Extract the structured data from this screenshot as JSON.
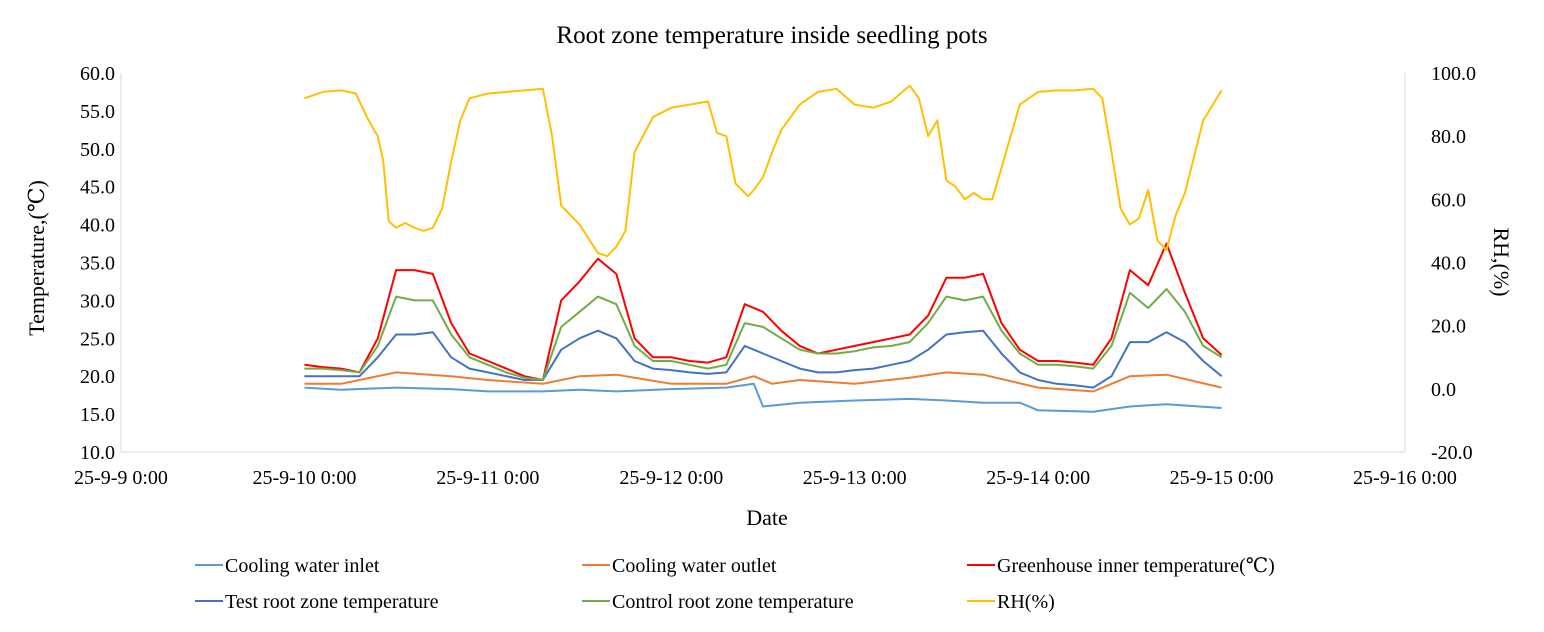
{
  "chart_data": {
    "type": "line",
    "title": "Root zone temperature inside seedling pots",
    "xlabel": "Date",
    "ylabel": "Temperature,(℃)",
    "y2label": "RH,(%)",
    "xlim": [
      0,
      7
    ],
    "ylim": [
      10,
      60
    ],
    "y2lim": [
      -20,
      100
    ],
    "x_tick_labels": [
      "25-9-9 0:00",
      "25-9-10 0:00",
      "25-9-11 0:00",
      "25-9-12 0:00",
      "25-9-13 0:00",
      "25-9-14 0:00",
      "25-9-15 0:00",
      "25-9-16 0:00"
    ],
    "y_tick_labels": [
      "10.0",
      "15.0",
      "20.0",
      "25.0",
      "30.0",
      "35.0",
      "40.0",
      "45.0",
      "50.0",
      "55.0",
      "60.0"
    ],
    "y2_tick_labels": [
      "-20.0",
      "0.0",
      "20.0",
      "40.0",
      "60.0",
      "80.0",
      "100.0"
    ],
    "grid": false,
    "legend_position": "bottom",
    "series": [
      {
        "name": "Cooling water inlet",
        "color": "#5b9bd5",
        "axis": "left",
        "x": [
          1.0,
          1.2,
          1.5,
          1.8,
          2.0,
          2.3,
          2.5,
          2.7,
          3.0,
          3.3,
          3.45,
          3.5,
          3.7,
          4.0,
          4.3,
          4.5,
          4.7,
          4.9,
          5.0,
          5.3,
          5.5,
          5.7,
          6.0
        ],
        "y": [
          18.5,
          18.2,
          18.5,
          18.3,
          18.0,
          18.0,
          18.2,
          18.0,
          18.3,
          18.5,
          19.0,
          16.0,
          16.5,
          16.8,
          17.0,
          16.8,
          16.5,
          16.5,
          15.5,
          15.3,
          16.0,
          16.3,
          15.8
        ]
      },
      {
        "name": "Cooling water outlet",
        "color": "#ed7d31",
        "axis": "left",
        "x": [
          1.0,
          1.2,
          1.5,
          1.8,
          2.0,
          2.3,
          2.5,
          2.7,
          3.0,
          3.3,
          3.45,
          3.55,
          3.7,
          4.0,
          4.3,
          4.5,
          4.7,
          5.0,
          5.3,
          5.5,
          5.7,
          6.0
        ],
        "y": [
          19.0,
          19.0,
          20.5,
          20.0,
          19.5,
          19.0,
          20.0,
          20.2,
          19.0,
          19.0,
          20.0,
          19.0,
          19.5,
          19.0,
          19.8,
          20.5,
          20.2,
          18.5,
          18.0,
          20.0,
          20.2,
          18.5
        ]
      },
      {
        "name": "Greenhouse inner temperature(℃)",
        "color": "#ff0000",
        "axis": "left",
        "x": [
          1.0,
          1.1,
          1.2,
          1.3,
          1.4,
          1.5,
          1.6,
          1.7,
          1.8,
          1.9,
          2.0,
          2.1,
          2.2,
          2.3,
          2.4,
          2.5,
          2.6,
          2.7,
          2.8,
          2.9,
          3.0,
          3.1,
          3.2,
          3.3,
          3.4,
          3.5,
          3.6,
          3.7,
          3.8,
          3.9,
          4.0,
          4.1,
          4.2,
          4.3,
          4.4,
          4.5,
          4.6,
          4.7,
          4.8,
          4.9,
          5.0,
          5.1,
          5.2,
          5.3,
          5.4,
          5.5,
          5.6,
          5.7,
          5.8,
          5.9,
          6.0
        ],
        "y": [
          21.5,
          21.2,
          21.0,
          20.5,
          25.0,
          34.0,
          34.0,
          33.5,
          27.0,
          23.0,
          22.0,
          21.0,
          20.0,
          19.5,
          30.0,
          32.5,
          35.5,
          33.5,
          25.0,
          22.5,
          22.5,
          22.0,
          21.8,
          22.5,
          29.5,
          28.5,
          26.0,
          24.0,
          23.0,
          23.5,
          24.0,
          24.5,
          25.0,
          25.5,
          28.0,
          33.0,
          33.0,
          33.5,
          27.0,
          23.5,
          22.0,
          22.0,
          21.8,
          21.5,
          25.0,
          34.0,
          32.0,
          37.5,
          31.0,
          25.0,
          22.8
        ]
      },
      {
        "name": "Test root zone temperature",
        "color": "#4472c4",
        "axis": "left",
        "x": [
          1.0,
          1.1,
          1.2,
          1.3,
          1.4,
          1.5,
          1.6,
          1.7,
          1.8,
          1.9,
          2.0,
          2.1,
          2.2,
          2.3,
          2.4,
          2.5,
          2.6,
          2.7,
          2.8,
          2.9,
          3.0,
          3.1,
          3.2,
          3.3,
          3.4,
          3.5,
          3.6,
          3.7,
          3.8,
          3.9,
          4.0,
          4.1,
          4.2,
          4.3,
          4.4,
          4.5,
          4.6,
          4.7,
          4.8,
          4.9,
          5.0,
          5.1,
          5.2,
          5.3,
          5.4,
          5.5,
          5.6,
          5.7,
          5.8,
          5.9,
          6.0
        ],
        "y": [
          20.0,
          20.0,
          20.0,
          20.0,
          22.5,
          25.5,
          25.5,
          25.8,
          22.5,
          21.0,
          20.5,
          20.0,
          19.5,
          19.5,
          23.5,
          25.0,
          26.0,
          25.0,
          22.0,
          21.0,
          20.8,
          20.5,
          20.3,
          20.5,
          24.0,
          23.0,
          22.0,
          21.0,
          20.5,
          20.5,
          20.8,
          21.0,
          21.5,
          22.0,
          23.5,
          25.5,
          25.8,
          26.0,
          23.0,
          20.5,
          19.5,
          19.0,
          18.8,
          18.5,
          20.0,
          24.5,
          24.5,
          25.8,
          24.5,
          22.0,
          20.0
        ]
      },
      {
        "name": "Control root zone temperature",
        "color": "#70ad47",
        "axis": "left",
        "x": [
          1.0,
          1.1,
          1.2,
          1.3,
          1.4,
          1.5,
          1.6,
          1.7,
          1.8,
          1.9,
          2.0,
          2.1,
          2.2,
          2.3,
          2.4,
          2.5,
          2.6,
          2.7,
          2.8,
          2.9,
          3.0,
          3.1,
          3.2,
          3.3,
          3.4,
          3.5,
          3.6,
          3.7,
          3.8,
          3.9,
          4.0,
          4.1,
          4.2,
          4.3,
          4.4,
          4.5,
          4.6,
          4.7,
          4.8,
          4.9,
          5.0,
          5.1,
          5.2,
          5.3,
          5.4,
          5.5,
          5.6,
          5.7,
          5.8,
          5.9,
          6.0
        ],
        "y": [
          21.0,
          21.0,
          20.8,
          20.5,
          24.0,
          30.5,
          30.0,
          30.0,
          25.5,
          22.5,
          21.5,
          20.5,
          19.8,
          19.5,
          26.5,
          28.5,
          30.5,
          29.5,
          24.0,
          22.0,
          22.0,
          21.5,
          21.0,
          21.5,
          27.0,
          26.5,
          25.0,
          23.5,
          23.0,
          23.0,
          23.3,
          23.8,
          24.0,
          24.5,
          27.0,
          30.5,
          30.0,
          30.5,
          26.0,
          23.0,
          21.5,
          21.5,
          21.3,
          21.0,
          24.0,
          31.0,
          29.0,
          31.5,
          28.5,
          24.0,
          22.5
        ]
      },
      {
        "name": "RH(%)",
        "color": "#ffc000",
        "axis": "right",
        "x": [
          1.0,
          1.1,
          1.2,
          1.28,
          1.35,
          1.4,
          1.43,
          1.46,
          1.5,
          1.55,
          1.6,
          1.65,
          1.7,
          1.75,
          1.8,
          1.85,
          1.9,
          2.0,
          2.2,
          2.3,
          2.35,
          2.4,
          2.5,
          2.6,
          2.65,
          2.7,
          2.75,
          2.8,
          2.9,
          3.0,
          3.1,
          3.2,
          3.25,
          3.3,
          3.35,
          3.4,
          3.42,
          3.45,
          3.5,
          3.55,
          3.6,
          3.7,
          3.8,
          3.9,
          4.0,
          4.1,
          4.2,
          4.3,
          4.35,
          4.4,
          4.45,
          4.5,
          4.55,
          4.6,
          4.65,
          4.7,
          4.75,
          4.8,
          4.9,
          5.0,
          5.1,
          5.2,
          5.3,
          5.35,
          5.4,
          5.45,
          5.5,
          5.55,
          5.6,
          5.65,
          5.7,
          5.75,
          5.8,
          5.9,
          6.0
        ],
        "y": [
          92.0,
          94.0,
          94.5,
          93.5,
          85.0,
          80.0,
          72.0,
          53.0,
          51.0,
          52.5,
          51.0,
          50.0,
          51.0,
          57.0,
          72.0,
          85.0,
          92.0,
          93.5,
          94.5,
          95.0,
          80.0,
          58.0,
          52.0,
          43.0,
          42.0,
          45.0,
          50.0,
          75.0,
          86.0,
          89.0,
          90.0,
          91.0,
          81.0,
          80.0,
          65.0,
          62.0,
          61.0,
          63.0,
          67.0,
          75.0,
          82.0,
          90.0,
          94.0,
          95.0,
          90.0,
          89.0,
          91.0,
          96.0,
          92.0,
          80.0,
          85.0,
          66.0,
          64.0,
          60.0,
          62.0,
          60.0,
          60.0,
          70.0,
          90.0,
          94.0,
          94.5,
          94.5,
          95.0,
          92.0,
          75.0,
          57.0,
          52.0,
          54.0,
          63.0,
          47.0,
          44.0,
          55.0,
          62.0,
          85.0,
          94.5
        ]
      }
    ]
  }
}
